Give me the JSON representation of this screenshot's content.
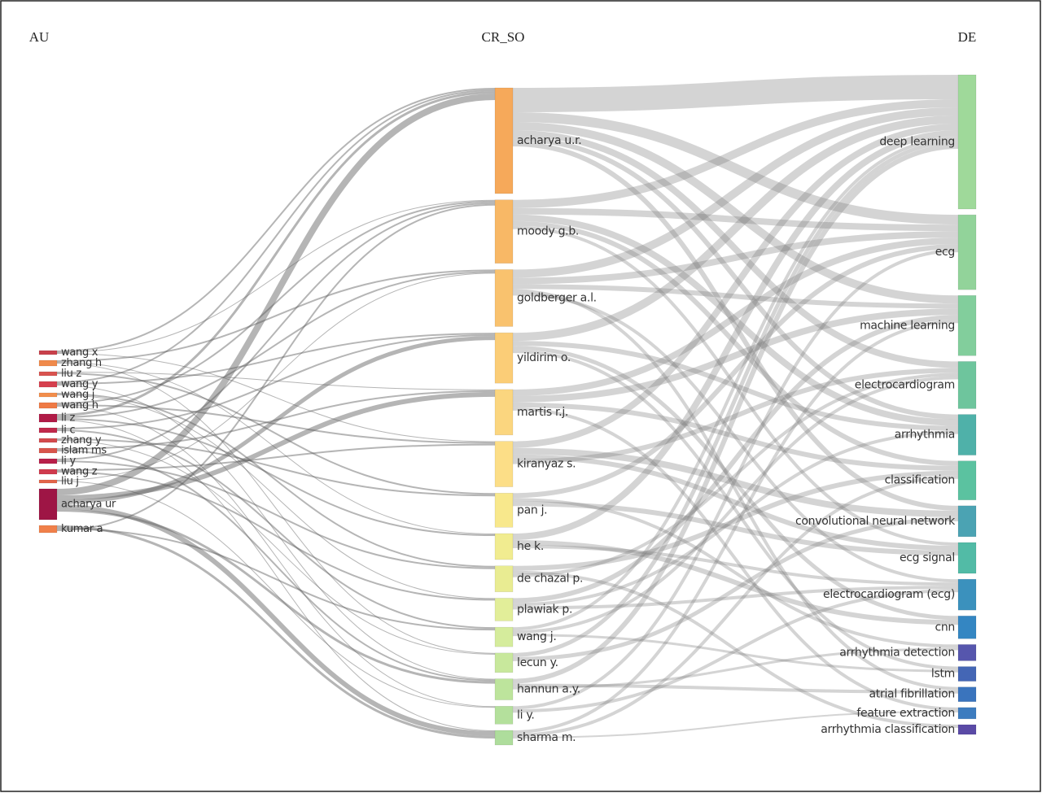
{
  "chart_data": {
    "type": "sankey",
    "columns": [
      {
        "title": "AU",
        "nodes": [
          {
            "name": "wang x",
            "value": 5,
            "color": "#c8414b"
          },
          {
            "name": "zhang h",
            "value": 7,
            "color": "#f08a4b"
          },
          {
            "name": "liu z",
            "value": 5,
            "color": "#d9534f"
          },
          {
            "name": "wang y",
            "value": 7,
            "color": "#d6404e"
          },
          {
            "name": "wang j",
            "value": 5,
            "color": "#f28e4c"
          },
          {
            "name": "wang h",
            "value": 7,
            "color": "#ef7a45"
          },
          {
            "name": "li z",
            "value": 10,
            "color": "#b01b47"
          },
          {
            "name": "li c",
            "value": 6,
            "color": "#c0294b"
          },
          {
            "name": "zhang y",
            "value": 5,
            "color": "#d24a4d"
          },
          {
            "name": "islam ms",
            "value": 6,
            "color": "#d8554c"
          },
          {
            "name": "li y",
            "value": 6,
            "color": "#b8204a"
          },
          {
            "name": "wang z",
            "value": 6,
            "color": "#d03a4d"
          },
          {
            "name": "liu j",
            "value": 4,
            "color": "#e3654a"
          },
          {
            "name": "acharya ur",
            "value": 38,
            "color": "#9e1545"
          },
          {
            "name": "kumar a",
            "value": 9,
            "color": "#f0804a"
          }
        ]
      },
      {
        "title": "CR_SO",
        "nodes": [
          {
            "name": "acharya u.r.",
            "value": 130,
            "color": "#f6a95a"
          },
          {
            "name": "moody g.b.",
            "value": 78,
            "color": "#f8b866"
          },
          {
            "name": "goldberger a.l.",
            "value": 70,
            "color": "#f9c26e"
          },
          {
            "name": "yildirim o.",
            "value": 62,
            "color": "#fbcd77"
          },
          {
            "name": "martis r.j.",
            "value": 56,
            "color": "#fbd67f"
          },
          {
            "name": "kiranyaz s.",
            "value": 56,
            "color": "#fcde87"
          },
          {
            "name": "pan j.",
            "value": 42,
            "color": "#f8e88c"
          },
          {
            "name": "he k.",
            "value": 32,
            "color": "#f1ec90"
          },
          {
            "name": "de chazal p.",
            "value": 32,
            "color": "#e9ec92"
          },
          {
            "name": "plawiak p.",
            "value": 28,
            "color": "#e2ee99"
          },
          {
            "name": "wang j.",
            "value": 24,
            "color": "#d5ec9c"
          },
          {
            "name": "lecun y.",
            "value": 24,
            "color": "#c8e89c"
          },
          {
            "name": "hannun a.y.",
            "value": 26,
            "color": "#bde49c"
          },
          {
            "name": "li y.",
            "value": 22,
            "color": "#b4e09c"
          },
          {
            "name": "sharma m.",
            "value": 18,
            "color": "#aedd9c"
          }
        ]
      },
      {
        "title": "DE",
        "nodes": [
          {
            "name": "deep learning",
            "value": 165,
            "color": "#9fd99a"
          },
          {
            "name": "ecg",
            "value": 92,
            "color": "#92d39a"
          },
          {
            "name": "machine learning",
            "value": 74,
            "color": "#82ce9c"
          },
          {
            "name": "electrocardiogram",
            "value": 58,
            "color": "#6ec59d"
          },
          {
            "name": "arrhythmia",
            "value": 50,
            "color": "#4fb1a9"
          },
          {
            "name": "classification",
            "value": 48,
            "color": "#5bc2a0"
          },
          {
            "name": "convolutional neural network",
            "value": 38,
            "color": "#4ba3b3"
          },
          {
            "name": "ecg signal",
            "value": 38,
            "color": "#52bba6"
          },
          {
            "name": "electrocardiogram (ecg)",
            "value": 38,
            "color": "#3b91bd"
          },
          {
            "name": "cnn",
            "value": 28,
            "color": "#3486c2"
          },
          {
            "name": "arrhythmia detection",
            "value": 20,
            "color": "#5656ad"
          },
          {
            "name": "lstm",
            "value": 18,
            "color": "#4466b5"
          },
          {
            "name": "atrial fibrillation",
            "value": 18,
            "color": "#3a74bd"
          },
          {
            "name": "feature extraction",
            "value": 14,
            "color": "#3d7cbf"
          },
          {
            "name": "arrhythmia classification",
            "value": 12,
            "color": "#5a4aa6"
          }
        ]
      }
    ],
    "links": [
      [
        "wang x",
        "acharya u.r.",
        2
      ],
      [
        "wang x",
        "moody g.b.",
        1
      ],
      [
        "wang x",
        "kiranyaz s.",
        1
      ],
      [
        "zhang h",
        "goldberger a.l.",
        2
      ],
      [
        "zhang h",
        "he k.",
        1
      ],
      [
        "zhang h",
        "lecun y.",
        1
      ],
      [
        "liu z",
        "martis r.j.",
        1
      ],
      [
        "liu z",
        "pan j.",
        2
      ],
      [
        "wang y",
        "acharya u.r.",
        2
      ],
      [
        "wang y",
        "yildirim o.",
        2
      ],
      [
        "wang y",
        "hannun a.y.",
        1
      ],
      [
        "wang j",
        "de chazal p.",
        2
      ],
      [
        "wang j",
        "plawiak p.",
        1
      ],
      [
        "wang h",
        "moody g.b.",
        2
      ],
      [
        "wang h",
        "kiranyaz s.",
        2
      ],
      [
        "wang h",
        "li y.",
        1
      ],
      [
        "li z",
        "acharya u.r.",
        3
      ],
      [
        "li z",
        "goldberger a.l.",
        2
      ],
      [
        "li z",
        "he k.",
        2
      ],
      [
        "li z",
        "sharma m.",
        1
      ],
      [
        "li c",
        "yildirim o.",
        2
      ],
      [
        "li c",
        "wang j.",
        2
      ],
      [
        "zhang y",
        "pan j.",
        2
      ],
      [
        "zhang y",
        "lecun y.",
        1
      ],
      [
        "islam ms",
        "martis r.j.",
        2
      ],
      [
        "islam ms",
        "hannun a.y.",
        2
      ],
      [
        "li y",
        "moody g.b.",
        2
      ],
      [
        "li y",
        "de chazal p.",
        2
      ],
      [
        "wang z",
        "kiranyaz s.",
        2
      ],
      [
        "wang z",
        "plawiak p.",
        2
      ],
      [
        "liu j",
        "goldberger a.l.",
        1
      ],
      [
        "liu j",
        "li y.",
        1
      ],
      [
        "acharya ur",
        "acharya u.r.",
        8
      ],
      [
        "acharya ur",
        "martis r.j.",
        6
      ],
      [
        "acharya ur",
        "yildirim o.",
        5
      ],
      [
        "acharya ur",
        "sharma m.",
        6
      ],
      [
        "acharya ur",
        "hannun a.y.",
        3
      ],
      [
        "kumar a",
        "sharma m.",
        3
      ],
      [
        "kumar a",
        "wang j.",
        2
      ],
      [
        "kumar a",
        "moody g.b.",
        2
      ],
      [
        "acharya u.r.",
        "deep learning",
        30
      ],
      [
        "acharya u.r.",
        "ecg",
        12
      ],
      [
        "acharya u.r.",
        "machine learning",
        10
      ],
      [
        "acharya u.r.",
        "electrocardiogram",
        8
      ],
      [
        "acharya u.r.",
        "arrhythmia",
        6
      ],
      [
        "acharya u.r.",
        "convolutional neural network",
        6
      ],
      [
        "moody g.b.",
        "deep learning",
        10
      ],
      [
        "moody g.b.",
        "ecg",
        8
      ],
      [
        "moody g.b.",
        "arrhythmia",
        8
      ],
      [
        "moody g.b.",
        "classification",
        6
      ],
      [
        "moody g.b.",
        "ecg signal",
        4
      ],
      [
        "goldberger a.l.",
        "deep learning",
        10
      ],
      [
        "goldberger a.l.",
        "ecg",
        8
      ],
      [
        "goldberger a.l.",
        "machine learning",
        6
      ],
      [
        "goldberger a.l.",
        "atrial fibrillation",
        4
      ],
      [
        "goldberger a.l.",
        "electrocardiogram (ecg)",
        4
      ],
      [
        "yildirim o.",
        "deep learning",
        10
      ],
      [
        "yildirim o.",
        "arrhythmia",
        6
      ],
      [
        "yildirim o.",
        "cnn",
        5
      ],
      [
        "yildirim o.",
        "lstm",
        4
      ],
      [
        "martis r.j.",
        "ecg",
        8
      ],
      [
        "martis r.j.",
        "machine learning",
        8
      ],
      [
        "martis r.j.",
        "classification",
        6
      ],
      [
        "martis r.j.",
        "feature extraction",
        4
      ],
      [
        "kiranyaz s.",
        "deep learning",
        8
      ],
      [
        "kiranyaz s.",
        "convolutional neural network",
        8
      ],
      [
        "kiranyaz s.",
        "ecg signal",
        6
      ],
      [
        "kiranyaz s.",
        "electrocardiogram",
        6
      ],
      [
        "pan j.",
        "ecg",
        6
      ],
      [
        "pan j.",
        "arrhythmia detection",
        4
      ],
      [
        "pan j.",
        "ecg signal",
        6
      ],
      [
        "he k.",
        "deep learning",
        8
      ],
      [
        "he k.",
        "cnn",
        6
      ],
      [
        "he k.",
        "electrocardiogram (ecg)",
        4
      ],
      [
        "de chazal p.",
        "classification",
        6
      ],
      [
        "de chazal p.",
        "arrhythmia classification",
        4
      ],
      [
        "de chazal p.",
        "electrocardiogram",
        4
      ],
      [
        "plawiak p.",
        "machine learning",
        6
      ],
      [
        "plawiak p.",
        "arrhythmia",
        4
      ],
      [
        "plawiak p.",
        "electrocardiogram (ecg)",
        4
      ],
      [
        "wang j.",
        "deep learning",
        4
      ],
      [
        "wang j.",
        "electrocardiogram",
        4
      ],
      [
        "wang j.",
        "lstm",
        3
      ],
      [
        "lecun y.",
        "deep learning",
        5
      ],
      [
        "lecun y.",
        "convolutional neural network",
        5
      ],
      [
        "hannun a.y.",
        "deep learning",
        6
      ],
      [
        "hannun a.y.",
        "atrial fibrillation",
        4
      ],
      [
        "hannun a.y.",
        "arrhythmia detection",
        3
      ],
      [
        "li y.",
        "ecg",
        4
      ],
      [
        "li y.",
        "electrocardiogram (ecg)",
        4
      ],
      [
        "sharma m.",
        "machine learning",
        4
      ],
      [
        "sharma m.",
        "classification",
        4
      ],
      [
        "sharma m.",
        "feature extraction",
        2
      ]
    ]
  }
}
